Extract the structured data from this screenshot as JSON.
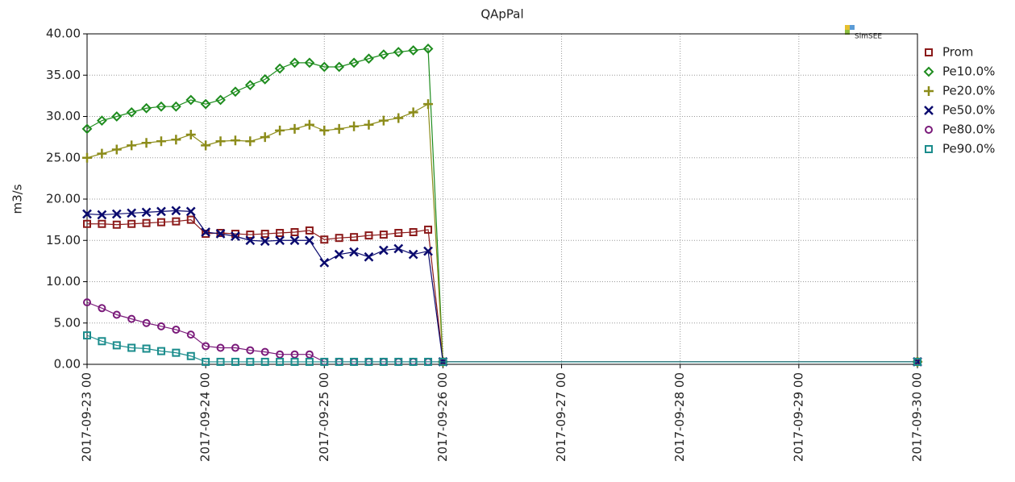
{
  "chart_data": {
    "type": "line",
    "title": "QApPal",
    "ylabel": "m3/s",
    "logo": "SimSEE",
    "legend": "right",
    "x": [
      "2017-09-23 00",
      "2017-09-23 03",
      "2017-09-23 06",
      "2017-09-23 09",
      "2017-09-23 12",
      "2017-09-23 15",
      "2017-09-23 18",
      "2017-09-23 21",
      "2017-09-24 00",
      "2017-09-24 03",
      "2017-09-24 06",
      "2017-09-24 09",
      "2017-09-24 12",
      "2017-09-24 15",
      "2017-09-24 18",
      "2017-09-24 21",
      "2017-09-25 00",
      "2017-09-25 03",
      "2017-09-25 06",
      "2017-09-25 09",
      "2017-09-25 12",
      "2017-09-25 15",
      "2017-09-25 18",
      "2017-09-25 21",
      "2017-09-26 00",
      "2017-09-30 00"
    ],
    "xlim": [
      "2017-09-23 00",
      "2017-09-30 00"
    ],
    "xticks": [
      "2017-09-23 00",
      "2017-09-24 00",
      "2017-09-25 00",
      "2017-09-26 00",
      "2017-09-27 00",
      "2017-09-28 00",
      "2017-09-29 00",
      "2017-09-30 00"
    ],
    "ylim": [
      0,
      40
    ],
    "yticks": [
      {
        "value": 0,
        "label": "0.00"
      },
      {
        "value": 5,
        "label": "5.00"
      },
      {
        "value": 10,
        "label": "10.00"
      },
      {
        "value": 15,
        "label": "15.00"
      },
      {
        "value": 20,
        "label": "20.00"
      },
      {
        "value": 25,
        "label": "25.00"
      },
      {
        "value": 30,
        "label": "30.00"
      },
      {
        "value": 35,
        "label": "35.00"
      },
      {
        "value": 40,
        "label": "40.00"
      }
    ],
    "grid": true,
    "series": [
      {
        "name": "Prom",
        "color": "#8b1a1a",
        "marker": "square",
        "values": [
          17.0,
          17.0,
          16.9,
          17.0,
          17.1,
          17.2,
          17.3,
          17.5,
          15.8,
          15.9,
          15.8,
          15.7,
          15.8,
          15.9,
          16.0,
          16.2,
          15.1,
          15.3,
          15.4,
          15.6,
          15.7,
          15.9,
          16.0,
          16.3,
          0.3,
          0.3
        ]
      },
      {
        "name": "Pe10.0%",
        "color": "#1e8c1e",
        "marker": "diamond",
        "values": [
          28.5,
          29.5,
          30,
          30.5,
          31,
          31.2,
          31.2,
          32,
          31.5,
          32,
          33,
          33.8,
          34.5,
          35.8,
          36.5,
          36.5,
          36,
          36,
          36.5,
          37,
          37.5,
          37.8,
          38,
          38.2,
          0.3,
          0.3
        ]
      },
      {
        "name": "Pe20.0%",
        "color": "#8c8c1a",
        "marker": "plus",
        "values": [
          25,
          25.5,
          26,
          26.5,
          26.8,
          27,
          27.2,
          27.8,
          26.5,
          27,
          27.1,
          27,
          27.5,
          28.3,
          28.5,
          29,
          28.3,
          28.5,
          28.8,
          29,
          29.5,
          29.8,
          30.5,
          31.5,
          0.3,
          0.3
        ]
      },
      {
        "name": "Pe50.0%",
        "color": "#0a0a6e",
        "marker": "cross",
        "values": [
          18.2,
          18.1,
          18.2,
          18.3,
          18.4,
          18.5,
          18.6,
          18.5,
          16,
          15.8,
          15.5,
          15,
          14.9,
          15,
          15,
          15,
          12.3,
          13.3,
          13.6,
          13,
          13.8,
          14,
          13.3,
          13.7,
          0.3,
          0.3
        ]
      },
      {
        "name": "Pe80.0%",
        "color": "#7a1a7a",
        "marker": "circle",
        "values": [
          7.5,
          6.8,
          6,
          5.5,
          5,
          4.6,
          4.2,
          3.6,
          2.2,
          2,
          2,
          1.7,
          1.5,
          1.2,
          1.2,
          1.2,
          0.3,
          0.3,
          0.3,
          0.3,
          0.3,
          0.3,
          0.3,
          0.3,
          0.3,
          0.3
        ]
      },
      {
        "name": "Pe90.0%",
        "color": "#1a8c8c",
        "marker": "square",
        "values": [
          3.5,
          2.8,
          2.3,
          2,
          1.9,
          1.6,
          1.4,
          1.0,
          0.3,
          0.3,
          0.3,
          0.3,
          0.3,
          0.3,
          0.3,
          0.3,
          0.3,
          0.3,
          0.3,
          0.3,
          0.3,
          0.3,
          0.3,
          0.3,
          0.3,
          0.3
        ]
      }
    ]
  }
}
